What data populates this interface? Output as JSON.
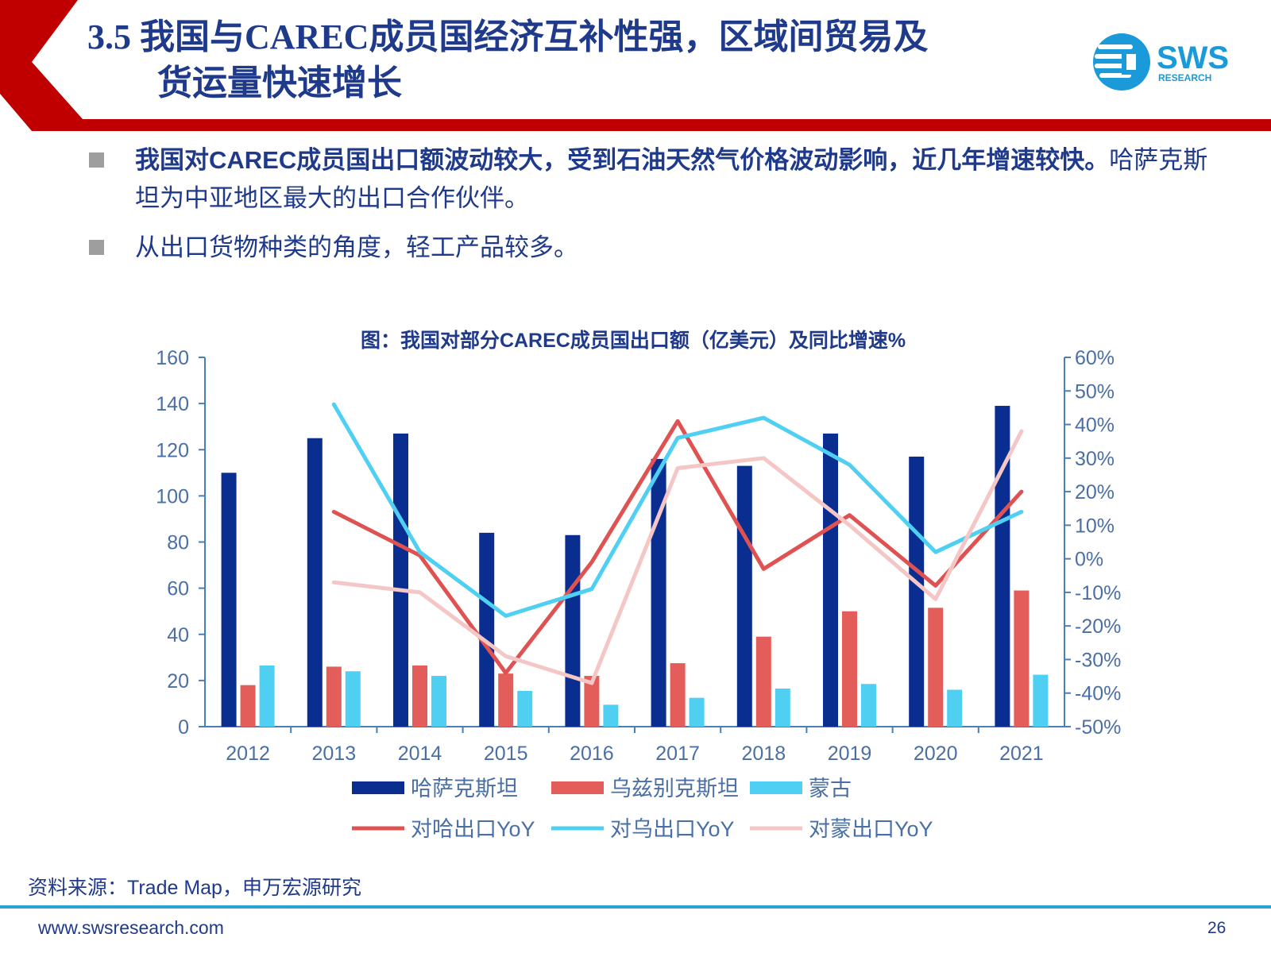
{
  "header": {
    "title_line1": "3.5 我国与CAREC成员国经济互补性强，区域间贸易及",
    "title_line2": "货运量快速增长",
    "logo_text": "SWS",
    "logo_sub": "RESEARCH",
    "accent_red": "#c00000"
  },
  "bullets": [
    {
      "bold": "我国对CAREC成员国出口额波动较大，受到石油天然气价格波动影响，近几年增速较快。",
      "normal": "哈萨克斯坦为中亚地区最大的出口合作伙伴。"
    },
    {
      "bold": "",
      "normal": "从出口货物种类的角度，轻工产品较多。"
    }
  ],
  "chart_data": {
    "type": "bar",
    "title": "图：我国对部分CAREC成员国出口额（亿美元）及同比增速%",
    "categories": [
      "2012",
      "2013",
      "2014",
      "2015",
      "2016",
      "2017",
      "2018",
      "2019",
      "2020",
      "2021"
    ],
    "y_left": {
      "min": 0,
      "max": 160,
      "ticks": [
        "0",
        "20",
        "40",
        "60",
        "80",
        "100",
        "120",
        "140",
        "160"
      ]
    },
    "y_right": {
      "min": -50,
      "max": 60,
      "ticks": [
        "-50%",
        "-40%",
        "-30%",
        "-20%",
        "-10%",
        "0%",
        "10%",
        "20%",
        "30%",
        "40%",
        "50%",
        "60%"
      ]
    },
    "series": [
      {
        "name": "哈萨克斯坦",
        "kind": "bar",
        "color": "#0a2e8f",
        "values": [
          110,
          125,
          127,
          84,
          83,
          116,
          113,
          127,
          117,
          139
        ]
      },
      {
        "name": "乌兹别克斯坦",
        "kind": "bar",
        "color": "#e35d5a",
        "values": [
          18,
          26,
          26.5,
          23,
          22,
          27.5,
          39,
          50,
          51.5,
          59
        ]
      },
      {
        "name": "蒙古",
        "kind": "bar",
        "color": "#4fd0f3",
        "values": [
          26.5,
          24,
          22,
          15.5,
          9.5,
          12.5,
          16.5,
          18.5,
          16,
          22.5
        ]
      },
      {
        "name": "对哈出口YoY",
        "kind": "line",
        "color": "#e05252",
        "values": [
          null,
          14,
          1,
          -34,
          -1,
          41,
          -3,
          13,
          -8,
          20
        ]
      },
      {
        "name": "对乌出口YoY",
        "kind": "line",
        "color": "#4fd0f3",
        "values": [
          null,
          46,
          2,
          -17,
          -9,
          36,
          42,
          28,
          2,
          14
        ]
      },
      {
        "name": "对蒙出口YoY",
        "kind": "line",
        "color": "#f5c6c6",
        "values": [
          null,
          -7,
          -10,
          -29,
          -37,
          27,
          30,
          10,
          -12,
          38
        ]
      }
    ],
    "legend_rows": [
      [
        {
          "label": "哈萨克斯坦",
          "color": "#0a2e8f",
          "kind": "bar"
        },
        {
          "label": "乌兹别克斯坦",
          "color": "#e35d5a",
          "kind": "bar"
        },
        {
          "label": "蒙古",
          "color": "#4fd0f3",
          "kind": "bar"
        }
      ],
      [
        {
          "label": "对哈出口YoY",
          "color": "#e05252",
          "kind": "line"
        },
        {
          "label": "对乌出口YoY",
          "color": "#4fd0f3",
          "kind": "line"
        },
        {
          "label": "对蒙出口YoY",
          "color": "#f5c6c6",
          "kind": "line"
        }
      ]
    ],
    "axis_color": "#4a7fb5",
    "legend_placement": "bottom"
  },
  "source": "资料来源：Trade Map，申万宏源研究",
  "footer": {
    "url": "www.swsresearch.com",
    "page": "26"
  }
}
